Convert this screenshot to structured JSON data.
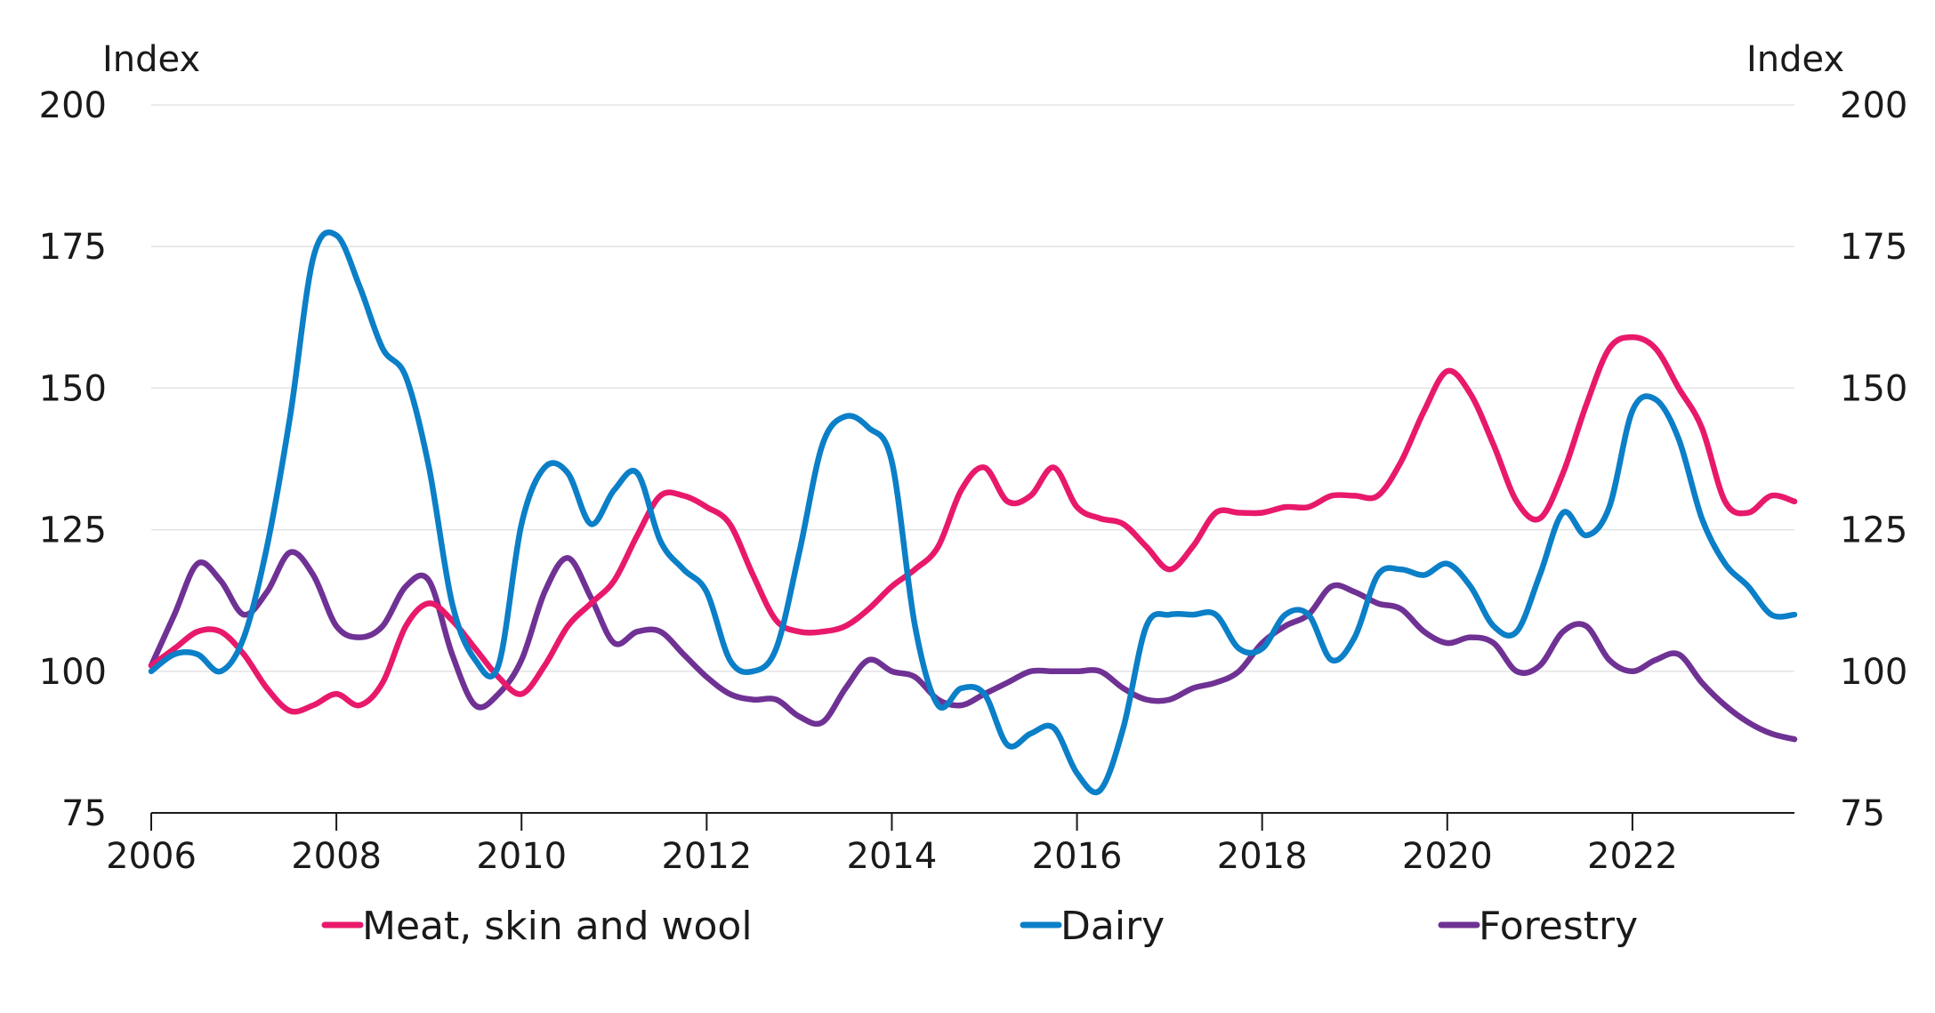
{
  "chart_data": {
    "type": "line",
    "y_unit_left": "Index",
    "y_unit_right": "Index",
    "ylim": [
      75,
      200
    ],
    "y_ticks": [
      75,
      100,
      125,
      150,
      175,
      200
    ],
    "y_tick_labels": [
      "75",
      "100",
      "125",
      "150",
      "175",
      "200"
    ],
    "xlim": [
      2006,
      2023.75
    ],
    "x_ticks": [
      2006,
      2008,
      2010,
      2012,
      2014,
      2016,
      2018,
      2020,
      2022
    ],
    "x_tick_labels": [
      "2006",
      "2008",
      "2010",
      "2012",
      "2014",
      "2016",
      "2018",
      "2020",
      "2022"
    ],
    "grid": "horizontal",
    "legend_position": "bottom",
    "series": [
      {
        "name": "Meat, skin and wool",
        "color": "#e8196b",
        "x": [
          2006.0,
          2006.25,
          2006.5,
          2006.75,
          2007.0,
          2007.25,
          2007.5,
          2007.75,
          2008.0,
          2008.25,
          2008.5,
          2008.75,
          2009.0,
          2009.25,
          2009.5,
          2009.75,
          2010.0,
          2010.25,
          2010.5,
          2010.75,
          2011.0,
          2011.25,
          2011.5,
          2011.75,
          2012.0,
          2012.25,
          2012.5,
          2012.75,
          2013.0,
          2013.25,
          2013.5,
          2013.75,
          2014.0,
          2014.25,
          2014.5,
          2014.75,
          2015.0,
          2015.25,
          2015.5,
          2015.75,
          2016.0,
          2016.25,
          2016.5,
          2016.75,
          2017.0,
          2017.25,
          2017.5,
          2017.75,
          2018.0,
          2018.25,
          2018.5,
          2018.75,
          2019.0,
          2019.25,
          2019.5,
          2019.75,
          2020.0,
          2020.25,
          2020.5,
          2020.75,
          2021.0,
          2021.25,
          2021.5,
          2021.75,
          2022.0,
          2022.25,
          2022.5,
          2022.75,
          2023.0,
          2023.25,
          2023.5,
          2023.75
        ],
        "values": [
          101,
          104,
          107,
          107,
          103,
          97,
          93,
          94,
          96,
          94,
          98,
          108,
          112,
          109,
          104,
          99,
          96,
          101,
          108,
          112,
          116,
          124,
          131,
          131,
          129,
          126,
          117,
          109,
          107,
          107,
          108,
          111,
          115,
          118,
          122,
          132,
          136,
          130,
          131,
          136,
          129,
          127,
          126,
          122,
          118,
          122,
          128,
          128,
          128,
          129,
          129,
          131,
          131,
          131,
          137,
          146,
          153,
          149,
          140,
          130,
          127,
          135,
          147,
          157,
          159,
          157,
          150,
          143,
          130,
          128,
          131,
          130
        ]
      },
      {
        "name": "Dairy",
        "color": "#0b7fc7",
        "x": [
          2006.0,
          2006.25,
          2006.5,
          2006.75,
          2007.0,
          2007.25,
          2007.5,
          2007.75,
          2008.0,
          2008.25,
          2008.5,
          2008.75,
          2009.0,
          2009.25,
          2009.5,
          2009.75,
          2010.0,
          2010.25,
          2010.5,
          2010.75,
          2011.0,
          2011.25,
          2011.5,
          2011.75,
          2012.0,
          2012.25,
          2012.5,
          2012.75,
          2013.0,
          2013.25,
          2013.5,
          2013.75,
          2014.0,
          2014.25,
          2014.5,
          2014.75,
          2015.0,
          2015.25,
          2015.5,
          2015.75,
          2016.0,
          2016.25,
          2016.5,
          2016.75,
          2017.0,
          2017.25,
          2017.5,
          2017.75,
          2018.0,
          2018.25,
          2018.5,
          2018.75,
          2019.0,
          2019.25,
          2019.5,
          2019.75,
          2020.0,
          2020.25,
          2020.5,
          2020.75,
          2021.0,
          2021.25,
          2021.5,
          2021.75,
          2022.0,
          2022.25,
          2022.5,
          2022.75,
          2023.0,
          2023.25,
          2023.5,
          2023.75
        ],
        "values": [
          100,
          103,
          103,
          100,
          106,
          122,
          145,
          173,
          177,
          168,
          157,
          152,
          136,
          112,
          102,
          101,
          126,
          136,
          135,
          126,
          132,
          135,
          123,
          118,
          114,
          102,
          100,
          104,
          121,
          140,
          145,
          143,
          137,
          108,
          94,
          97,
          96,
          87,
          89,
          90,
          82,
          79,
          90,
          108,
          110,
          110,
          110,
          104,
          104,
          110,
          110,
          102,
          106,
          117,
          118,
          117,
          119,
          115,
          108,
          107,
          117,
          128,
          124,
          129,
          146,
          148,
          141,
          127,
          119,
          115,
          110,
          110
        ]
      },
      {
        "name": "Forestry",
        "color": "#6f3294",
        "x": [
          2006.0,
          2006.25,
          2006.5,
          2006.75,
          2007.0,
          2007.25,
          2007.5,
          2007.75,
          2008.0,
          2008.25,
          2008.5,
          2008.75,
          2009.0,
          2009.25,
          2009.5,
          2009.75,
          2010.0,
          2010.25,
          2010.5,
          2010.75,
          2011.0,
          2011.25,
          2011.5,
          2011.75,
          2012.0,
          2012.25,
          2012.5,
          2012.75,
          2013.0,
          2013.25,
          2013.5,
          2013.75,
          2014.0,
          2014.25,
          2014.5,
          2014.75,
          2015.0,
          2015.25,
          2015.5,
          2015.75,
          2016.0,
          2016.25,
          2016.5,
          2016.75,
          2017.0,
          2017.25,
          2017.5,
          2017.75,
          2018.0,
          2018.25,
          2018.5,
          2018.75,
          2019.0,
          2019.25,
          2019.5,
          2019.75,
          2020.0,
          2020.25,
          2020.5,
          2020.75,
          2021.0,
          2021.25,
          2021.5,
          2021.75,
          2022.0,
          2022.25,
          2022.5,
          2022.75,
          2023.0,
          2023.25,
          2023.5,
          2023.75
        ],
        "values": [
          101,
          110,
          119,
          116,
          110,
          114,
          121,
          117,
          108,
          106,
          108,
          115,
          116,
          103,
          94,
          96,
          102,
          114,
          120,
          113,
          105,
          107,
          107,
          103,
          99,
          96,
          95,
          95,
          92,
          91,
          97,
          102,
          100,
          99,
          95,
          94,
          96,
          98,
          100,
          100,
          100,
          100,
          97,
          95,
          95,
          97,
          98,
          100,
          105,
          108,
          110,
          115,
          114,
          112,
          111,
          107,
          105,
          106,
          105,
          100,
          101,
          107,
          108,
          102,
          100,
          102,
          103,
          98,
          94,
          91,
          89,
          88
        ]
      }
    ]
  }
}
